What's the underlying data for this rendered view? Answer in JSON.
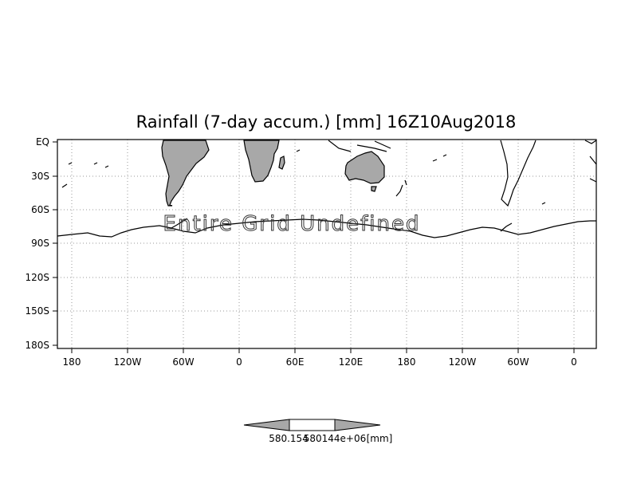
{
  "title": "Rainfall (7-day accum.) [mm] 16Z10Aug2018",
  "overlay_message": "Entire Grid Undefined",
  "lat_labels": [
    "EQ",
    "30S",
    "60S",
    "90S",
    "120S",
    "150S",
    "180S"
  ],
  "lon_labels": [
    "180",
    "120W",
    "60W",
    "0",
    "60E",
    "120E",
    "180",
    "120W",
    "60W",
    "0"
  ],
  "colorbar": {
    "low_label": "580.154",
    "high_label": "580144e+06",
    "unit": "[mm]"
  },
  "colors": {
    "land": "#a8a8a8",
    "frame": "#000000",
    "grid": "#999999"
  }
}
